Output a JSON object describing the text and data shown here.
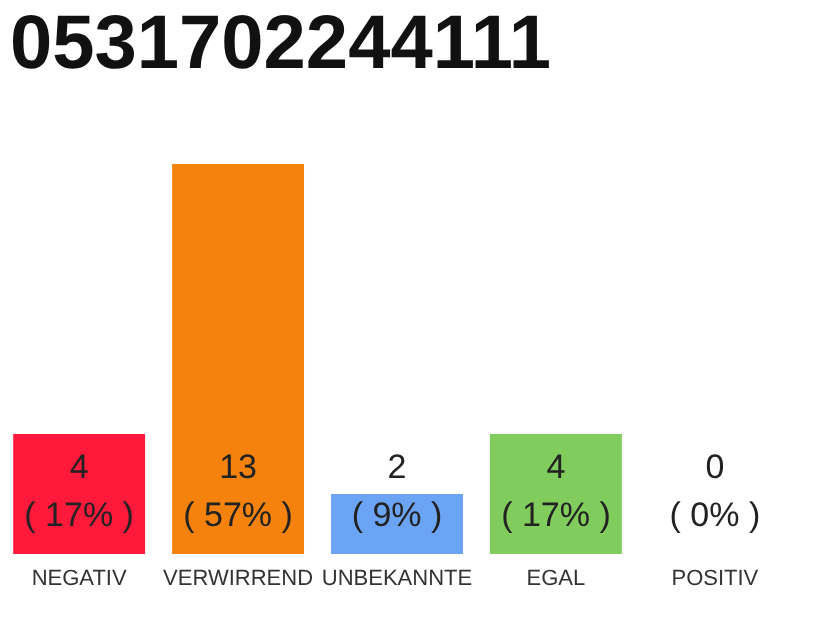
{
  "chart_data": {
    "type": "bar",
    "title": "0531702244111",
    "categories": [
      "NEGATIV",
      "VERWIRREND",
      "UNBEKANNTE",
      "EGAL",
      "POSITIV"
    ],
    "values": [
      4,
      13,
      2,
      4,
      0
    ],
    "colors": [
      "#ff1a3c",
      "#f5820d",
      "#6ba4f5",
      "#80cc5c",
      "#eeeeee"
    ],
    "value_labels": [
      "4\n( 17% )",
      "13\n( 57% )",
      "2\n( 9% )",
      "4\n( 17% )",
      "0\n( 0% )"
    ],
    "grid": false
  }
}
